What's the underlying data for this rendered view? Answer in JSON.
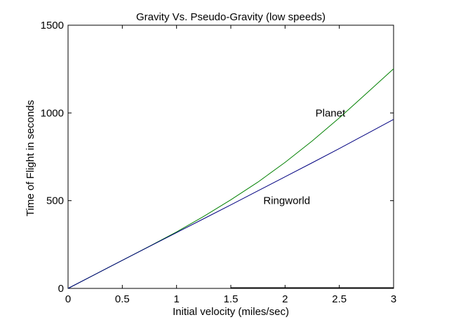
{
  "chart_data": {
    "type": "line",
    "title": "Gravity Vs. Pseudo-Gravity (low speeds)",
    "xlabel": "Initial velocity (miles/sec)",
    "ylabel": "Time of Flight in seconds",
    "xlim": [
      0,
      3
    ],
    "ylim": [
      0,
      1500
    ],
    "x_ticks": [
      0,
      0.5,
      1,
      1.5,
      2,
      2.5,
      3
    ],
    "x_tick_labels": [
      "0",
      "0.5",
      "1",
      "1.5",
      "2",
      "2.5",
      "3"
    ],
    "y_ticks": [
      0,
      500,
      1000,
      1500
    ],
    "y_tick_labels": [
      "0",
      "500",
      "1000",
      "1500"
    ],
    "grid": false,
    "legend": "none",
    "x": [
      0,
      0.25,
      0.5,
      0.75,
      1,
      1.25,
      1.5,
      1.75,
      2,
      2.25,
      2.5,
      2.75,
      3
    ],
    "series": [
      {
        "name": "Planet",
        "color": "#008000",
        "values": [
          0,
          80,
          160,
          240,
          322,
          410,
          505,
          606,
          718,
          840,
          972,
          1111,
          1252
        ]
      },
      {
        "name": "Ringworld",
        "color": "#000080",
        "values": [
          0,
          80,
          160,
          239,
          318,
          397,
          476,
          556,
          636,
          716,
          797,
          880,
          963
        ]
      }
    ],
    "annotations": [
      {
        "text": "Planet",
        "x": 2.28,
        "y": 980
      },
      {
        "text": "Ringworld",
        "x": 1.8,
        "y": 480
      }
    ],
    "overlay_segment": {
      "x": [
        1.5,
        3
      ],
      "y": [
        0,
        0
      ],
      "color": "#000000"
    }
  }
}
